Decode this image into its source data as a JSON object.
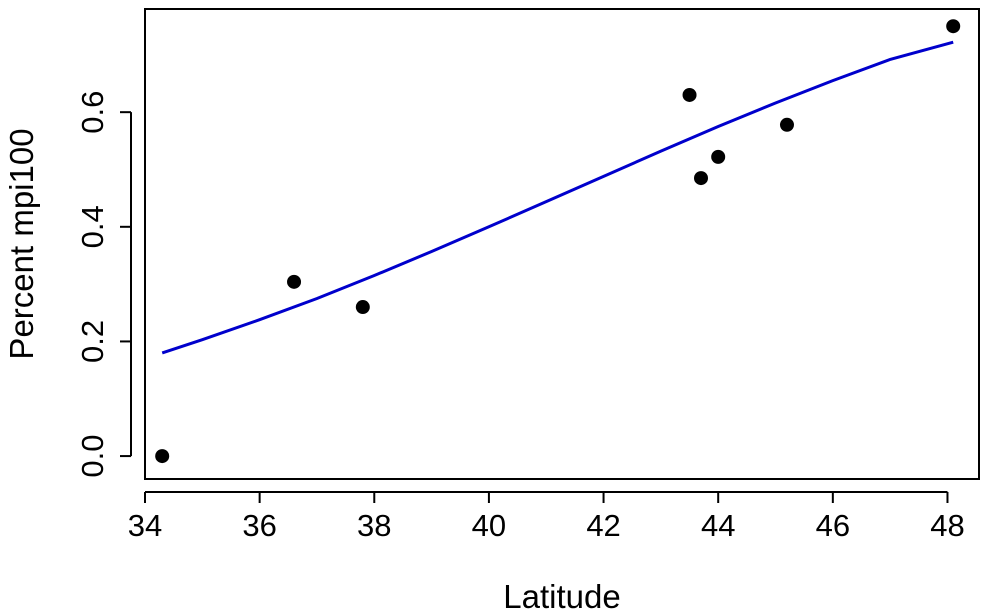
{
  "chart_data": {
    "type": "scatter",
    "xlabel": "Latitude",
    "ylabel": "Percent mpi100",
    "xlim": [
      34.0,
      48.55
    ],
    "ylim": [
      -0.04,
      0.78
    ],
    "xticks": [
      34,
      36,
      38,
      40,
      42,
      44,
      46,
      48
    ],
    "yticks": [
      0.0,
      0.2,
      0.4,
      0.6
    ],
    "xtick_labels": [
      "34",
      "36",
      "38",
      "40",
      "42",
      "44",
      "46",
      "48"
    ],
    "ytick_labels": [
      "0.0",
      "0.2",
      "0.4",
      "0.6"
    ],
    "grid": false,
    "points": [
      {
        "x": 34.3,
        "y": 0.0
      },
      {
        "x": 36.6,
        "y": 0.304
      },
      {
        "x": 37.8,
        "y": 0.26
      },
      {
        "x": 43.5,
        "y": 0.63
      },
      {
        "x": 43.7,
        "y": 0.485
      },
      {
        "x": 44.0,
        "y": 0.522
      },
      {
        "x": 45.2,
        "y": 0.578
      },
      {
        "x": 48.1,
        "y": 0.75
      }
    ],
    "fit_line": {
      "color": "#0000cc",
      "x": [
        34.3,
        35.0,
        36.0,
        37.0,
        38.0,
        39.0,
        40.0,
        41.0,
        42.0,
        43.0,
        44.0,
        45.0,
        46.0,
        47.0,
        48.1
      ],
      "y": [
        0.18,
        0.203,
        0.238,
        0.275,
        0.315,
        0.357,
        0.4,
        0.444,
        0.488,
        0.532,
        0.575,
        0.616,
        0.655,
        0.692,
        0.722
      ]
    },
    "point_color": "#000000",
    "axes_color": "#000000"
  }
}
